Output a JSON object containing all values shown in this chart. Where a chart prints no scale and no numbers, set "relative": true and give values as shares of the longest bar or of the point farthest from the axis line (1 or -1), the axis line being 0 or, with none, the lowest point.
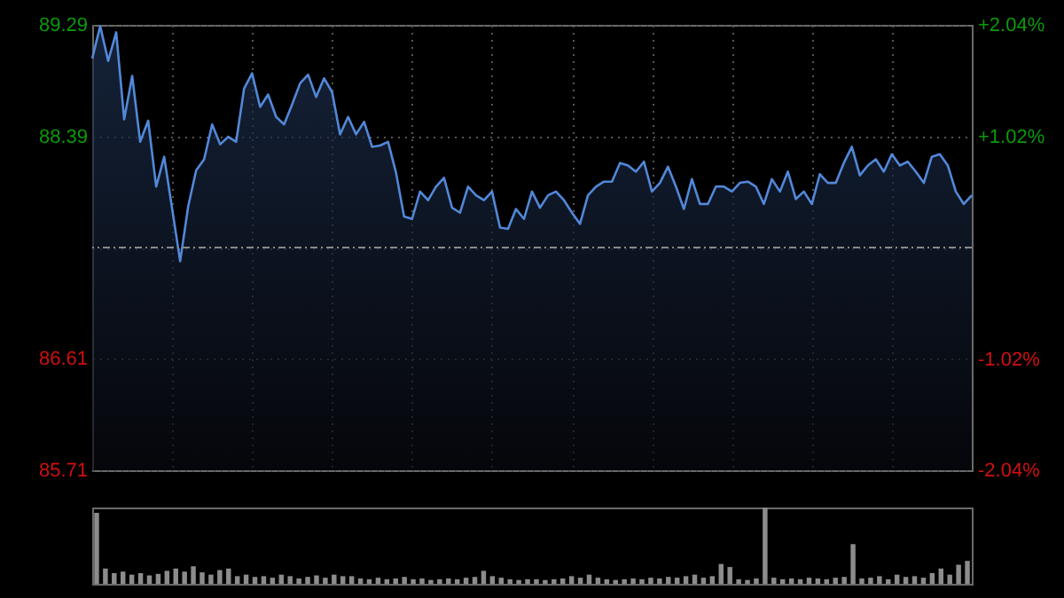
{
  "chart_data": [
    {
      "type": "area",
      "categories": [
        null,
        null,
        null,
        null,
        null,
        null,
        null,
        null,
        null,
        null,
        null,
        null,
        null,
        null,
        null,
        null,
        null,
        null,
        null,
        null,
        null,
        null,
        null,
        null,
        null,
        null,
        null,
        null,
        null,
        null,
        null,
        null,
        null,
        null,
        null,
        null,
        null,
        null,
        null,
        null,
        null,
        null,
        null,
        null,
        null,
        null,
        null,
        null,
        null,
        null,
        null,
        null,
        null,
        null,
        null,
        null,
        null,
        null,
        null,
        null,
        null,
        null,
        null,
        null,
        null,
        null,
        null,
        null,
        null,
        null,
        null,
        null,
        null,
        null,
        null,
        null,
        null,
        null,
        null,
        null,
        null,
        null,
        null,
        null,
        null,
        null,
        null,
        null,
        null,
        null,
        null,
        null,
        null,
        null,
        null,
        null,
        null,
        null,
        null,
        null,
        null,
        null,
        null,
        null,
        null,
        null,
        null,
        null,
        null,
        null,
        null
      ],
      "ylim": [
        85.71,
        89.29
      ],
      "yticks": [
        85.71,
        86.61,
        {
          "value": 87.5,
          "label": null
        },
        88.39,
        89.29
      ],
      "y2lim": [
        -2.04,
        2.04
      ],
      "y2ticks": [
        {
          "value": -2.04,
          "label": "-2.04%"
        },
        {
          "value": -1.02,
          "label": "-1.02%"
        },
        {
          "value": 0,
          "label": null
        },
        {
          "value": 1.02,
          "label": "+1.02%"
        },
        {
          "value": 2.04,
          "label": "+2.04%"
        }
      ],
      "ref_lines": [
        {
          "axis": "y",
          "value": 87.5,
          "line_style": "dashed",
          "color": "#8a8a8a"
        }
      ],
      "grid": true,
      "tick_labels": "y",
      "marker": "none",
      "line_style": "solid",
      "series": [
        {
          "color": "#5288d8",
          "values": [
            89.02,
            89.28,
            89.0,
            89.23,
            88.53,
            88.88,
            88.35,
            88.52,
            87.99,
            88.23,
            87.81,
            87.39,
            87.83,
            88.12,
            88.21,
            88.49,
            88.33,
            88.39,
            88.35,
            88.78,
            88.9,
            88.63,
            88.73,
            88.55,
            88.49,
            88.65,
            88.82,
            88.89,
            88.71,
            88.86,
            88.75,
            88.41,
            88.55,
            88.41,
            88.51,
            88.31,
            88.32,
            88.35,
            88.1,
            87.75,
            87.73,
            87.95,
            87.88,
            87.99,
            88.06,
            87.82,
            87.78,
            87.99,
            87.92,
            87.88,
            87.95,
            87.66,
            87.65,
            87.81,
            87.73,
            87.95,
            87.82,
            87.92,
            87.95,
            87.88,
            87.78,
            87.69,
            87.92,
            87.99,
            88.03,
            88.03,
            88.18,
            88.16,
            88.11,
            88.19,
            87.95,
            88.02,
            88.15,
            87.99,
            87.81,
            88.05,
            87.85,
            87.85,
            87.99,
            87.99,
            87.95,
            88.02,
            88.03,
            87.99,
            87.85,
            88.05,
            87.95,
            88.11,
            87.89,
            87.95,
            87.85,
            88.09,
            88.02,
            88.02,
            88.18,
            88.31,
            88.08,
            88.16,
            88.21,
            88.11,
            88.25,
            88.16,
            88.19,
            88.11,
            88.02,
            88.23,
            88.25,
            88.16,
            87.95,
            87.85,
            87.92
          ]
        }
      ]
    },
    {
      "type": "bar",
      "relative": true,
      "tick_labels": false,
      "color": "#8c8c8c",
      "categories": [
        null,
        null,
        null,
        null,
        null,
        null,
        null,
        null,
        null,
        null,
        null,
        null,
        null,
        null,
        null,
        null,
        null,
        null,
        null,
        null,
        null,
        null,
        null,
        null,
        null,
        null,
        null,
        null,
        null,
        null,
        null,
        null,
        null,
        null,
        null,
        null,
        null,
        null,
        null,
        null,
        null,
        null,
        null,
        null,
        null,
        null,
        null,
        null,
        null,
        null,
        null,
        null,
        null,
        null,
        null,
        null,
        null,
        null,
        null,
        null,
        null,
        null,
        null,
        null,
        null,
        null,
        null,
        null,
        null,
        null,
        null,
        null,
        null,
        null,
        null,
        null,
        null,
        null,
        null,
        null,
        null,
        null,
        null,
        null,
        null,
        null,
        null,
        null,
        null,
        null,
        null,
        null,
        null,
        null,
        null,
        null,
        null,
        null,
        null,
        null
      ],
      "values": [
        0.93,
        0.2,
        0.14,
        0.16,
        0.12,
        0.14,
        0.11,
        0.13,
        0.17,
        0.2,
        0.16,
        0.23,
        0.15,
        0.12,
        0.18,
        0.2,
        0.1,
        0.12,
        0.09,
        0.1,
        0.08,
        0.12,
        0.1,
        0.07,
        0.09,
        0.11,
        0.08,
        0.12,
        0.1,
        0.1,
        0.07,
        0.06,
        0.08,
        0.06,
        0.07,
        0.09,
        0.06,
        0.07,
        0.05,
        0.06,
        0.07,
        0.06,
        0.08,
        0.09,
        0.17,
        0.1,
        0.08,
        0.06,
        0.05,
        0.06,
        0.06,
        0.05,
        0.06,
        0.07,
        0.1,
        0.08,
        0.12,
        0.08,
        0.06,
        0.05,
        0.06,
        0.07,
        0.06,
        0.08,
        0.07,
        0.09,
        0.08,
        0.1,
        0.12,
        0.08,
        0.1,
        0.26,
        0.22,
        0.06,
        0.05,
        0.07,
        1,
        0.08,
        0.06,
        0.07,
        0.06,
        0.08,
        0.07,
        0.06,
        0.08,
        0.09,
        0.52,
        0.07,
        0.08,
        0.1,
        0.06,
        0.12,
        0.09,
        0.1,
        0.08,
        0.14,
        0.2,
        0.12,
        0.25,
        0.3
      ]
    }
  ]
}
